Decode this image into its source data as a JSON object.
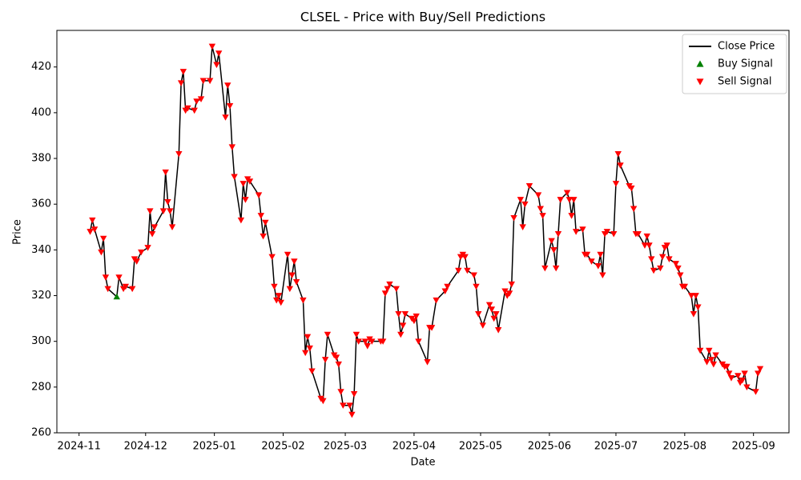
{
  "chart_data": {
    "type": "line",
    "title": "CLSEL - Price with Buy/Sell Predictions",
    "x_label": "Date",
    "y_label": "Price",
    "xlim": [
      "2024-10-22",
      "2025-09-17"
    ],
    "xticks": [
      {
        "value": "2024-11-01",
        "label": "2024-11"
      },
      {
        "value": "2024-12-01",
        "label": "2024-12"
      },
      {
        "value": "2025-01-01",
        "label": "2025-01"
      },
      {
        "value": "2025-02-01",
        "label": "2025-02"
      },
      {
        "value": "2025-03-01",
        "label": "2025-03"
      },
      {
        "value": "2025-04-01",
        "label": "2025-04"
      },
      {
        "value": "2025-05-01",
        "label": "2025-05"
      },
      {
        "value": "2025-06-01",
        "label": "2025-06"
      },
      {
        "value": "2025-07-01",
        "label": "2025-07"
      },
      {
        "value": "2025-08-01",
        "label": "2025-08"
      },
      {
        "value": "2025-09-01",
        "label": "2025-09"
      }
    ],
    "ylim": [
      260,
      436
    ],
    "yticks": [
      260,
      280,
      300,
      320,
      340,
      360,
      380,
      400,
      420
    ],
    "grid": false,
    "legend": "upper right",
    "x": [
      "2024-11-06",
      "2024-11-07",
      "2024-11-08",
      "2024-11-11",
      "2024-11-12",
      "2024-11-13",
      "2024-11-14",
      "2024-11-18",
      "2024-11-19",
      "2024-11-21",
      "2024-11-22",
      "2024-11-25",
      "2024-11-26",
      "2024-11-27",
      "2024-11-29",
      "2024-12-02",
      "2024-12-03",
      "2024-12-04",
      "2024-12-05",
      "2024-12-09",
      "2024-12-10",
      "2024-12-11",
      "2024-12-12",
      "2024-12-13",
      "2024-12-16",
      "2024-12-17",
      "2024-12-18",
      "2024-12-19",
      "2024-12-20",
      "2024-12-23",
      "2024-12-24",
      "2024-12-26",
      "2024-12-27",
      "2024-12-30",
      "2024-12-31",
      "2025-01-02",
      "2025-01-03",
      "2025-01-06",
      "2025-01-07",
      "2025-01-08",
      "2025-01-09",
      "2025-01-10",
      "2025-01-13",
      "2025-01-14",
      "2025-01-15",
      "2025-01-16",
      "2025-01-17",
      "2025-01-21",
      "2025-01-22",
      "2025-01-23",
      "2025-01-24",
      "2025-01-27",
      "2025-01-28",
      "2025-01-29",
      "2025-01-30",
      "2025-01-31",
      "2025-02-03",
      "2025-02-04",
      "2025-02-05",
      "2025-02-06",
      "2025-02-07",
      "2025-02-10",
      "2025-02-11",
      "2025-02-12",
      "2025-02-13",
      "2025-02-14",
      "2025-02-18",
      "2025-02-19",
      "2025-02-20",
      "2025-02-21",
      "2025-02-24",
      "2025-02-25",
      "2025-02-26",
      "2025-02-27",
      "2025-02-28",
      "2025-03-03",
      "2025-03-04",
      "2025-03-05",
      "2025-03-06",
      "2025-03-07",
      "2025-03-10",
      "2025-03-11",
      "2025-03-12",
      "2025-03-13",
      "2025-03-17",
      "2025-03-18",
      "2025-03-19",
      "2025-03-20",
      "2025-03-21",
      "2025-03-24",
      "2025-03-25",
      "2025-03-26",
      "2025-03-27",
      "2025-03-28",
      "2025-03-31",
      "2025-04-01",
      "2025-04-02",
      "2025-04-03",
      "2025-04-07",
      "2025-04-08",
      "2025-04-09",
      "2025-04-11",
      "2025-04-15",
      "2025-04-16",
      "2025-04-21",
      "2025-04-22",
      "2025-04-23",
      "2025-04-24",
      "2025-04-25",
      "2025-04-28",
      "2025-04-29",
      "2025-04-30",
      "2025-05-02",
      "2025-05-05",
      "2025-05-06",
      "2025-05-07",
      "2025-05-08",
      "2025-05-09",
      "2025-05-12",
      "2025-05-13",
      "2025-05-14",
      "2025-05-15",
      "2025-05-16",
      "2025-05-19",
      "2025-05-20",
      "2025-05-21",
      "2025-05-23",
      "2025-05-27",
      "2025-05-28",
      "2025-05-29",
      "2025-05-30",
      "2025-06-02",
      "2025-06-03",
      "2025-06-04",
      "2025-06-05",
      "2025-06-06",
      "2025-06-09",
      "2025-06-10",
      "2025-06-11",
      "2025-06-12",
      "2025-06-13",
      "2025-06-16",
      "2025-06-17",
      "2025-06-18",
      "2025-06-20",
      "2025-06-23",
      "2025-06-24",
      "2025-06-25",
      "2025-06-26",
      "2025-06-27",
      "2025-06-30",
      "2025-07-01",
      "2025-07-02",
      "2025-07-03",
      "2025-07-07",
      "2025-07-08",
      "2025-07-09",
      "2025-07-10",
      "2025-07-11",
      "2025-07-14",
      "2025-07-15",
      "2025-07-16",
      "2025-07-17",
      "2025-07-18",
      "2025-07-21",
      "2025-07-22",
      "2025-07-23",
      "2025-07-24",
      "2025-07-25",
      "2025-07-28",
      "2025-07-29",
      "2025-07-30",
      "2025-07-31",
      "2025-08-01",
      "2025-08-04",
      "2025-08-05",
      "2025-08-06",
      "2025-08-07",
      "2025-08-08",
      "2025-08-11",
      "2025-08-12",
      "2025-08-13",
      "2025-08-14",
      "2025-08-15",
      "2025-08-18",
      "2025-08-19",
      "2025-08-20",
      "2025-08-21",
      "2025-08-22",
      "2025-08-25",
      "2025-08-26",
      "2025-08-27",
      "2025-08-28",
      "2025-08-29",
      "2025-09-02",
      "2025-09-03",
      "2025-09-04"
    ],
    "series": [
      {
        "name": "Close Price",
        "color": "#000000",
        "marker": "none",
        "values": [
          348,
          353,
          349,
          339,
          345,
          328,
          323,
          319.5,
          328,
          323,
          324,
          323,
          336,
          335,
          339,
          341,
          357,
          347,
          350,
          357,
          374,
          361,
          357,
          350,
          382,
          413,
          418,
          401,
          402,
          401,
          405,
          406,
          414,
          414,
          429,
          421,
          426,
          398,
          412,
          403,
          385,
          372,
          353,
          369,
          362,
          371,
          370,
          364,
          355,
          346,
          352,
          337,
          324,
          318,
          320,
          317,
          338,
          323,
          329,
          335,
          326,
          318,
          295,
          302,
          297,
          287,
          275,
          274,
          292,
          303,
          294,
          293,
          290,
          278,
          272,
          272,
          268,
          277,
          303,
          300,
          300,
          298,
          301,
          300,
          300,
          300,
          321,
          323,
          325,
          323,
          312,
          303,
          307,
          312,
          310,
          309,
          311,
          300,
          291,
          306,
          306,
          318,
          322,
          324,
          331,
          337,
          338,
          337,
          331,
          329,
          324,
          312,
          307,
          316,
          314,
          310,
          312,
          305,
          322,
          320,
          321,
          325,
          354,
          362,
          350,
          360,
          368,
          364,
          358,
          355,
          332,
          344,
          340,
          332,
          347,
          362,
          365,
          362,
          355,
          362,
          348,
          349,
          338,
          338,
          335,
          333,
          338,
          329,
          347,
          348,
          347,
          369,
          382,
          377,
          368,
          367,
          358,
          347,
          347,
          342,
          346,
          342,
          336,
          331,
          332,
          337,
          341,
          342,
          336,
          334,
          332,
          329,
          324,
          324,
          320,
          312,
          320,
          315,
          296,
          291,
          296,
          292,
          290,
          294,
          290,
          289,
          289,
          286,
          284,
          285,
          282,
          283,
          286,
          280,
          278,
          286,
          288
        ]
      },
      {
        "name": "Buy Signal",
        "color": "#008000",
        "marker": "triangle-up",
        "x": [
          "2024-11-18"
        ],
        "values": [
          319.5
        ]
      },
      {
        "name": "Sell Signal",
        "color": "#ff0000",
        "marker": "triangle-down",
        "values": [
          348,
          353,
          349,
          339,
          345,
          328,
          323,
          null,
          328,
          323,
          324,
          323,
          336,
          335,
          339,
          341,
          357,
          347,
          350,
          357,
          374,
          361,
          357,
          350,
          382,
          413,
          418,
          401,
          402,
          401,
          405,
          406,
          414,
          414,
          429,
          421,
          426,
          398,
          412,
          403,
          385,
          372,
          353,
          369,
          362,
          371,
          370,
          364,
          355,
          346,
          352,
          337,
          324,
          318,
          320,
          317,
          338,
          323,
          329,
          335,
          326,
          318,
          295,
          302,
          297,
          287,
          275,
          274,
          292,
          303,
          294,
          293,
          290,
          278,
          272,
          272,
          268,
          277,
          303,
          300,
          300,
          298,
          301,
          300,
          300,
          300,
          321,
          323,
          325,
          323,
          312,
          303,
          307,
          312,
          310,
          309,
          311,
          300,
          291,
          306,
          306,
          318,
          322,
          324,
          331,
          337,
          338,
          337,
          331,
          329,
          324,
          312,
          307,
          316,
          314,
          310,
          312,
          305,
          322,
          320,
          321,
          325,
          354,
          362,
          350,
          360,
          368,
          364,
          358,
          355,
          332,
          344,
          340,
          332,
          347,
          362,
          365,
          362,
          355,
          362,
          348,
          349,
          338,
          338,
          335,
          333,
          338,
          329,
          347,
          348,
          347,
          369,
          382,
          377,
          368,
          367,
          358,
          347,
          347,
          342,
          346,
          342,
          336,
          331,
          332,
          337,
          341,
          342,
          336,
          334,
          332,
          329,
          324,
          324,
          320,
          312,
          320,
          315,
          296,
          291,
          296,
          292,
          290,
          294,
          290,
          289,
          289,
          286,
          284,
          285,
          282,
          283,
          286,
          280,
          278,
          286,
          288
        ]
      }
    ]
  }
}
